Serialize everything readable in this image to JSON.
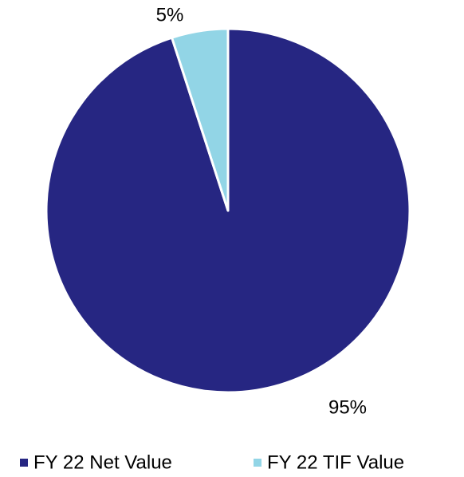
{
  "chart_data": {
    "type": "pie",
    "categories": [
      "FY 22 Net Value",
      "FY 22 TIF Value"
    ],
    "values": [
      95,
      5
    ],
    "value_labels": [
      "95%",
      "5%"
    ],
    "colors": [
      "#262682",
      "#92d5e6"
    ],
    "legend": "bottom"
  }
}
